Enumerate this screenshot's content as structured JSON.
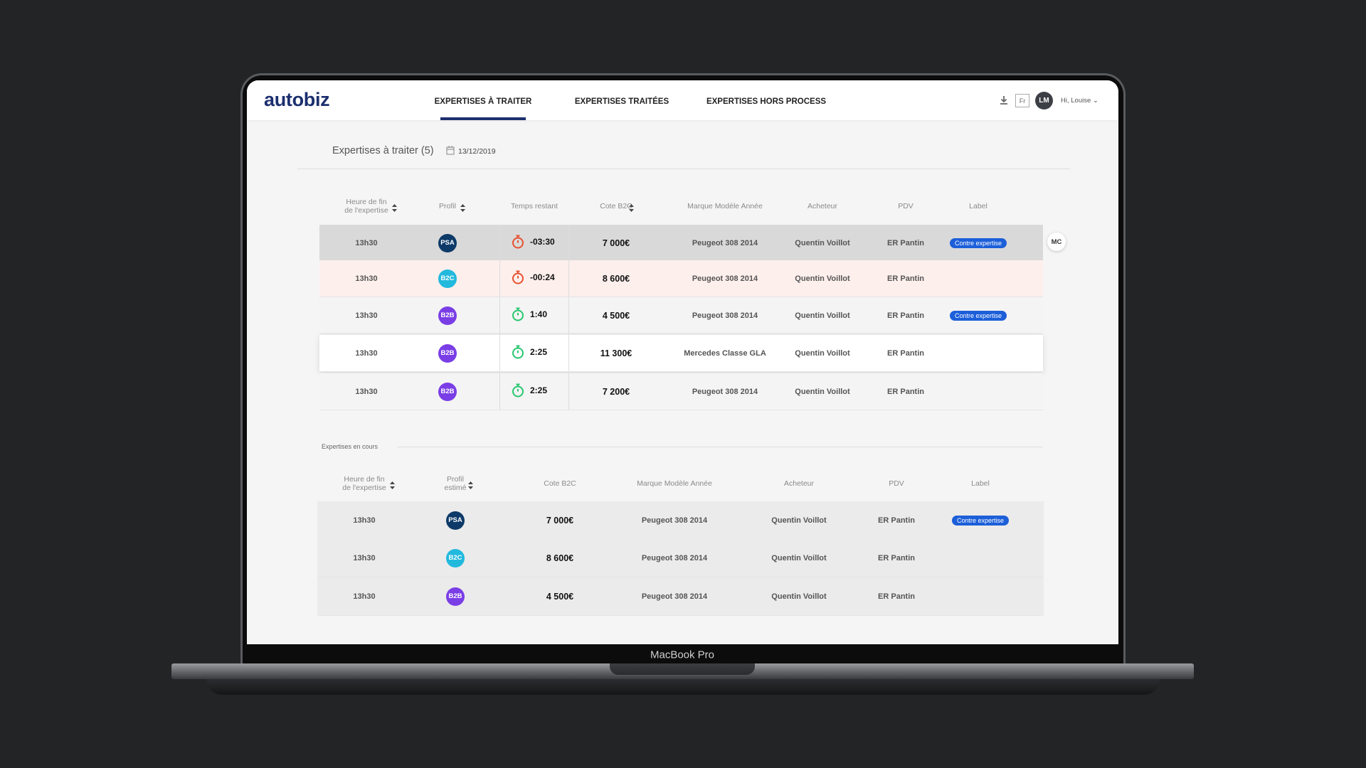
{
  "device": "MacBook Pro",
  "header": {
    "logo": "autobiz",
    "tabs": [
      "EXPERTISES À TRAITER",
      "EXPERTISES TRAITÉES",
      "EXPERTISES HORS PROCESS"
    ],
    "lang": "Fr",
    "avatar": "LM",
    "greeting": "Hi, Louise"
  },
  "profile_colors": {
    "PSA": "#0d3a68",
    "B2C": "#22b9dd",
    "B2B": "#7a3ee6"
  },
  "section1": {
    "title": "Expertises à traiter (5)",
    "date": "13/12/2019",
    "row_badge": "MC",
    "columns": [
      {
        "text": "Heure de fin\nde l'expertise",
        "sort": true
      },
      {
        "text": "Profil",
        "sort": true
      },
      {
        "text": "Temps restant"
      },
      {
        "text": "Cote B2C",
        "sort": true
      },
      {
        "text": "Marque Modèle Année"
      },
      {
        "text": "Acheteur"
      },
      {
        "text": "PDV"
      },
      {
        "text": "Label"
      }
    ],
    "rows": [
      {
        "time": "13h30",
        "profile": "PSA",
        "remaining": "-03:30",
        "timer_color": "#e8502f",
        "price": "7 000€",
        "model": "Peugeot 308 2014",
        "buyer": "Quentin Voillot",
        "pdv": "ER Pantin",
        "label": "Contre expertise",
        "bg": "#d9d9d9"
      },
      {
        "time": "13h30",
        "profile": "B2C",
        "remaining": "-00:24",
        "timer_color": "#e8502f",
        "price": "8 600€",
        "model": "Peugeot 308 2014",
        "buyer": "Quentin Voillot",
        "pdv": "ER Pantin",
        "bg": "#fcefec"
      },
      {
        "time": "13h30",
        "profile": "B2B",
        "remaining": "1:40",
        "timer_color": "#27c76f",
        "price": "4 500€",
        "model": "Peugeot 308 2014",
        "buyer": "Quentin Voillot",
        "pdv": "ER Pantin",
        "label": "Contre expertise",
        "bg": "#f4f4f4"
      },
      {
        "time": "13h30",
        "profile": "B2B",
        "remaining": "2:25",
        "timer_color": "#27c76f",
        "price": "11 300€",
        "model": "Mercedes Classe GLA",
        "buyer": "Quentin Voillot",
        "pdv": "ER Pantin",
        "bg": "#ffffff"
      },
      {
        "time": "13h30",
        "profile": "B2B",
        "remaining": "2:25",
        "timer_color": "#27c76f",
        "price": "7 200€",
        "model": "Peugeot 308 2014",
        "buyer": "Quentin Voillot",
        "pdv": "ER Pantin",
        "bg": "#f4f4f4"
      }
    ]
  },
  "section2": {
    "title": "Expertises en cours",
    "columns": [
      {
        "text": "Heure de fin\nde l'expertise",
        "sort": true
      },
      {
        "text": "Profil\nestimé",
        "sort": true
      },
      {
        "text": "Cote B2C"
      },
      {
        "text": "Marque Modèle Année"
      },
      {
        "text": "Acheteur"
      },
      {
        "text": "PDV"
      },
      {
        "text": "Label"
      }
    ],
    "rows": [
      {
        "time": "13h30",
        "profile": "PSA",
        "price": "7 000€",
        "model": "Peugeot 308 2014",
        "buyer": "Quentin Voillot",
        "pdv": "ER Pantin",
        "label": "Contre expertise"
      },
      {
        "time": "13h30",
        "profile": "B2C",
        "price": "8 600€",
        "model": "Peugeot 308 2014",
        "buyer": "Quentin Voillot",
        "pdv": "ER Pantin"
      },
      {
        "time": "13h30",
        "profile": "B2B",
        "price": "4 500€",
        "model": "Peugeot 308 2014",
        "buyer": "Quentin Voillot",
        "pdv": "ER Pantin"
      }
    ]
  }
}
